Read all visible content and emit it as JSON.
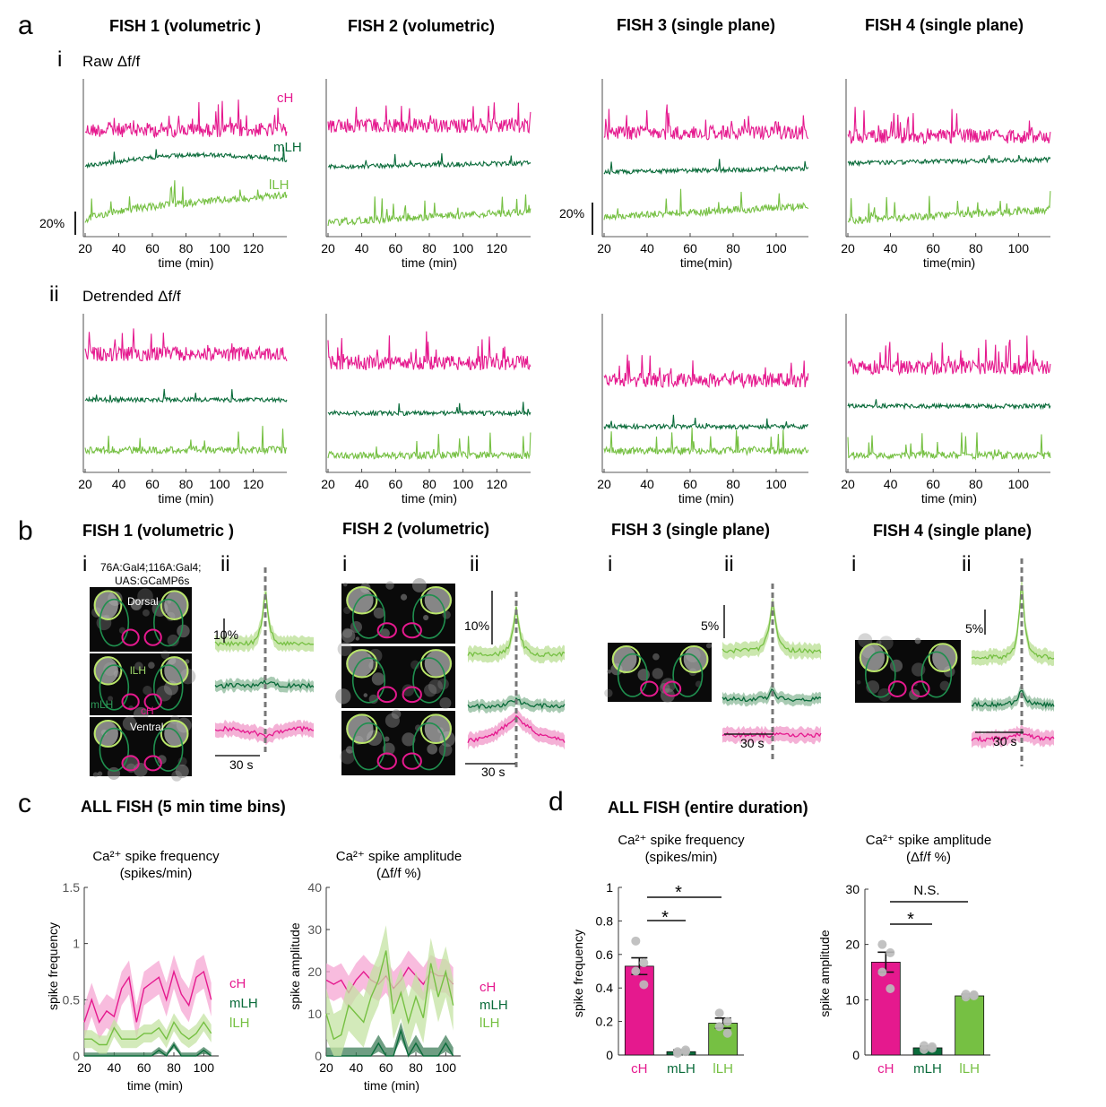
{
  "colors": {
    "cH": "#e5198e",
    "mLH": "#0a6b3a",
    "lLH": "#76c043",
    "axis": "#222222",
    "dot": "#bbbbbb"
  },
  "panels": {
    "a": "a",
    "b": "b",
    "c": "c",
    "d": "d"
  },
  "fish_titles": [
    "FISH 1 (volumetric )",
    "FISH 2 (volumetric)",
    "FISH 3 (single plane)",
    "FISH 4 (single plane)"
  ],
  "fish_titles_b": [
    "FISH 1 (volumetric )",
    "FISH 2 (volumetric)",
    "FISH 3 (single plane)",
    "FISH 4 (single plane)"
  ],
  "row_i": {
    "roman": "i",
    "label": "Raw Δf/f"
  },
  "row_ii": {
    "roman": "ii",
    "label": "Detrended Δf/f"
  },
  "trace_labels": {
    "cH": "cH",
    "mLH": "mLH",
    "lLH": "lLH"
  },
  "scale_labels": {
    "fish1": "20%",
    "fish3": "20%"
  },
  "xlabels": {
    "time_min": "time (min)",
    "time_min_nospace": "time(min)"
  },
  "ticks_fish12": [
    "20",
    "40",
    "60",
    "80",
    "100",
    "120"
  ],
  "ticks_fish34": [
    "20",
    "40",
    "60",
    "80",
    "100"
  ],
  "panel_b": {
    "roman_i": "i",
    "roman_ii": "ii",
    "genotype": [
      "76A:Gal4;116A:Gal4;",
      "UAS:GCaMP6s"
    ],
    "dorsal": "Dorsal",
    "ventral": "Ventral",
    "lLH": "lLH",
    "mLH": "mLH",
    "cH": "cH",
    "scales": [
      "10%",
      "10%",
      "5%",
      "5%"
    ],
    "time_scale": "30 s"
  },
  "panel_c_title": "ALL FISH (5 min time bins)",
  "panel_d_title": "ALL FISH (entire duration)",
  "charts_text": {
    "freq_title_1": "Ca²⁺ spike frequency",
    "freq_title_2": "(spikes/min)",
    "amp_title_1": "Ca²⁺ spike amplitude",
    "amp_title_2": "(Δf/f %)",
    "freq_ylabel": "spike frequency",
    "amp_ylabel": "spike amplitude",
    "xlabel": "time (min)",
    "star": "*",
    "ns": "N.S."
  },
  "chart_data": [
    {
      "type": "line",
      "title": "Ca²⁺ spike frequency (spikes/min)",
      "xlabel": "time (min)",
      "ylabel": "spike frequency",
      "xlim": [
        20,
        110
      ],
      "ylim": [
        0,
        1.5
      ],
      "xticks": [
        20,
        40,
        60,
        80,
        100
      ],
      "yticks": [
        "0",
        "0.5",
        "1",
        "1.5"
      ],
      "x": [
        20,
        25,
        30,
        35,
        40,
        45,
        50,
        55,
        60,
        65,
        70,
        75,
        80,
        85,
        90,
        95,
        100,
        105
      ],
      "series": [
        {
          "name": "cH",
          "values": [
            0.3,
            0.5,
            0.3,
            0.4,
            0.35,
            0.6,
            0.7,
            0.3,
            0.6,
            0.65,
            0.7,
            0.5,
            0.75,
            0.55,
            0.45,
            0.7,
            0.75,
            0.5
          ],
          "err": 0.15
        },
        {
          "name": "mLH",
          "values": [
            0,
            0,
            0,
            0,
            0,
            0,
            0,
            0,
            0,
            0,
            0.05,
            0,
            0.1,
            0,
            0,
            0,
            0.05,
            0
          ],
          "err": 0.03
        },
        {
          "name": "lLH",
          "values": [
            0.15,
            0.15,
            0.1,
            0.1,
            0.25,
            0.15,
            0.15,
            0.15,
            0.2,
            0.2,
            0.25,
            0.15,
            0.3,
            0.2,
            0.15,
            0.2,
            0.3,
            0.2
          ],
          "err": 0.08
        }
      ]
    },
    {
      "type": "line",
      "title": "Ca²⁺ spike amplitude (Δf/f %)",
      "xlabel": "time (min)",
      "ylabel": "spike amplitude",
      "xlim": [
        20,
        110
      ],
      "ylim": [
        0,
        40
      ],
      "xticks": [
        20,
        40,
        60,
        80,
        100
      ],
      "yticks": [
        "0",
        "10",
        "20",
        "30",
        "40"
      ],
      "x": [
        20,
        25,
        30,
        35,
        40,
        45,
        50,
        55,
        60,
        65,
        70,
        75,
        80,
        85,
        90,
        95,
        100,
        105
      ],
      "series": [
        {
          "name": "cH",
          "values": [
            18,
            17,
            18,
            15,
            18,
            20,
            18,
            17,
            19,
            16,
            18,
            21,
            19,
            17,
            20,
            19,
            19,
            17
          ],
          "err": 4
        },
        {
          "name": "mLH",
          "values": [
            0,
            0,
            0,
            0,
            0,
            0,
            0,
            3,
            0,
            0,
            6,
            0,
            3,
            0,
            0,
            0,
            3,
            0
          ],
          "err": 2
        },
        {
          "name": "lLH",
          "values": [
            10,
            4,
            5,
            12,
            10,
            8,
            14,
            18,
            25,
            10,
            15,
            8,
            14,
            9,
            22,
            14,
            20,
            12
          ],
          "err": 6
        }
      ]
    },
    {
      "type": "bar",
      "title": "Ca²⁺ spike frequency (spikes/min)",
      "ylabel": "spike frequency",
      "ylim": [
        0,
        1
      ],
      "yticks": [
        "0",
        "0.2",
        "0.4",
        "0.6",
        "0.8",
        "1"
      ],
      "categories": [
        "cH",
        "mLH",
        "lLH"
      ],
      "values": [
        0.53,
        0.02,
        0.19
      ],
      "sem": [
        0.05,
        0.01,
        0.03
      ],
      "points": [
        [
          0.68,
          0.55,
          0.5,
          0.42
        ],
        [
          0.02,
          0.02,
          0.01,
          0.03
        ],
        [
          0.25,
          0.2,
          0.17,
          0.13
        ]
      ],
      "significance": [
        {
          "pair": [
            "cH",
            "mLH"
          ],
          "label": "*"
        },
        {
          "pair": [
            "cH",
            "lLH"
          ],
          "label": "*"
        }
      ]
    },
    {
      "type": "bar",
      "title": "Ca²⁺ spike amplitude (Δf/f %)",
      "ylabel": "spike amplitude",
      "ylim": [
        0,
        30
      ],
      "yticks": [
        "0",
        "10",
        "20",
        "30"
      ],
      "categories": [
        "cH",
        "mLH",
        "lLH"
      ],
      "values": [
        16.8,
        1.3,
        10.7
      ],
      "sem": [
        1.8,
        0.3,
        0.3
      ],
      "points": [
        [
          20,
          18.5,
          15,
          12
        ],
        [
          1.7,
          1.2,
          1.0,
          1.5
        ],
        [
          11,
          10.7,
          10.5,
          10.9
        ]
      ],
      "significance": [
        {
          "pair": [
            "cH",
            "mLH"
          ],
          "label": "*"
        },
        {
          "pair": [
            "cH",
            "lLH"
          ],
          "label": "N.S."
        }
      ]
    }
  ]
}
